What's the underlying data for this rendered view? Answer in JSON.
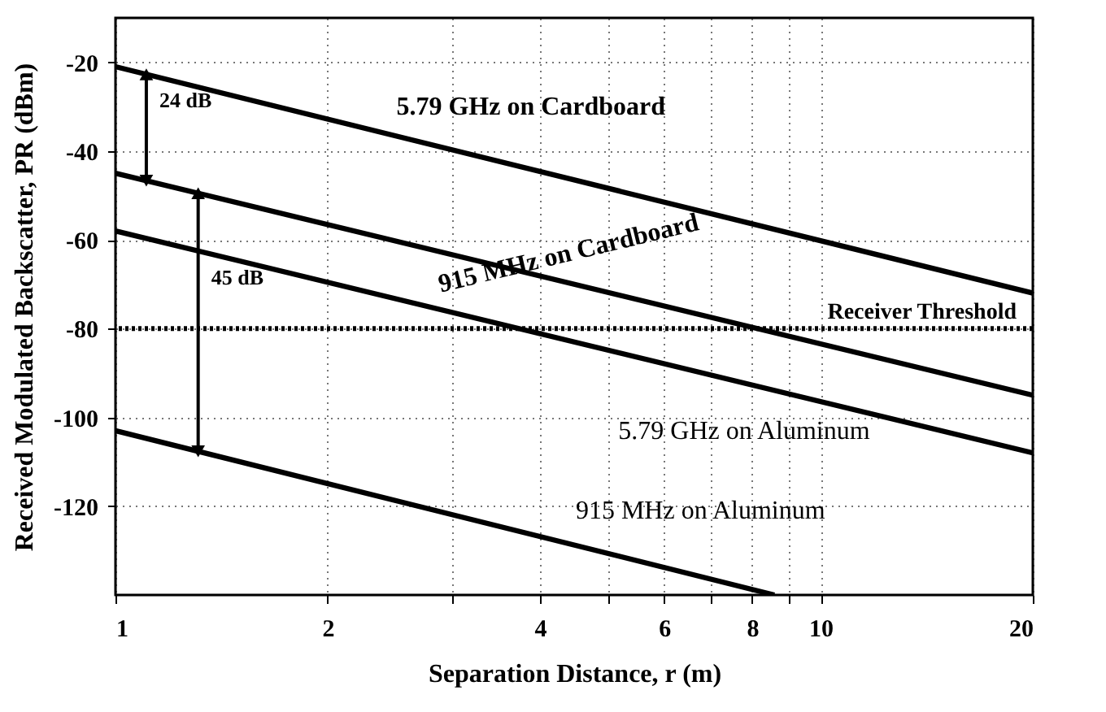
{
  "chart_data": {
    "type": "line",
    "xlabel": "Separation Distance, r (m)",
    "ylabel": "Received Modulated Backscatter, PR (dBm)",
    "log": "x",
    "xlim": [
      1,
      20
    ],
    "ylim": [
      -140,
      -10
    ],
    "xticks": [
      1,
      2,
      {
        "value": 3,
        "label": null
      },
      4,
      {
        "value": 5,
        "label": null
      },
      6,
      {
        "value": 7,
        "label": null
      },
      8,
      {
        "value": 9,
        "label": null
      },
      10,
      20
    ],
    "yticks": [
      -120,
      -100,
      -80,
      -60,
      -40,
      -20
    ],
    "grid": true,
    "legend": false,
    "line_style": "solid",
    "marker": "none",
    "series": [
      {
        "name": "5.79 GHz on Cardboard",
        "color": "#000000",
        "x": [
          1,
          20
        ],
        "values": [
          -21,
          -72
        ]
      },
      {
        "name": "915 MHz on Cardboard",
        "color": "#000000",
        "x": [
          1,
          20
        ],
        "values": [
          -45,
          -95
        ]
      },
      {
        "name": "5.79 GHz on Aluminum",
        "color": "#000000",
        "x": [
          1,
          20
        ],
        "values": [
          -58,
          -108
        ]
      },
      {
        "name": "915 MHz on Aluminum",
        "color": "#000000",
        "x": [
          1,
          8.6
        ],
        "values": [
          -103,
          -140
        ]
      }
    ],
    "ref_lines": [
      {
        "axis": "y",
        "value": -80,
        "label": "Receiver Threshold",
        "color": "#000000",
        "line_style": "dotted"
      }
    ],
    "annotations": [
      "24 dB",
      "45 dB"
    ]
  }
}
